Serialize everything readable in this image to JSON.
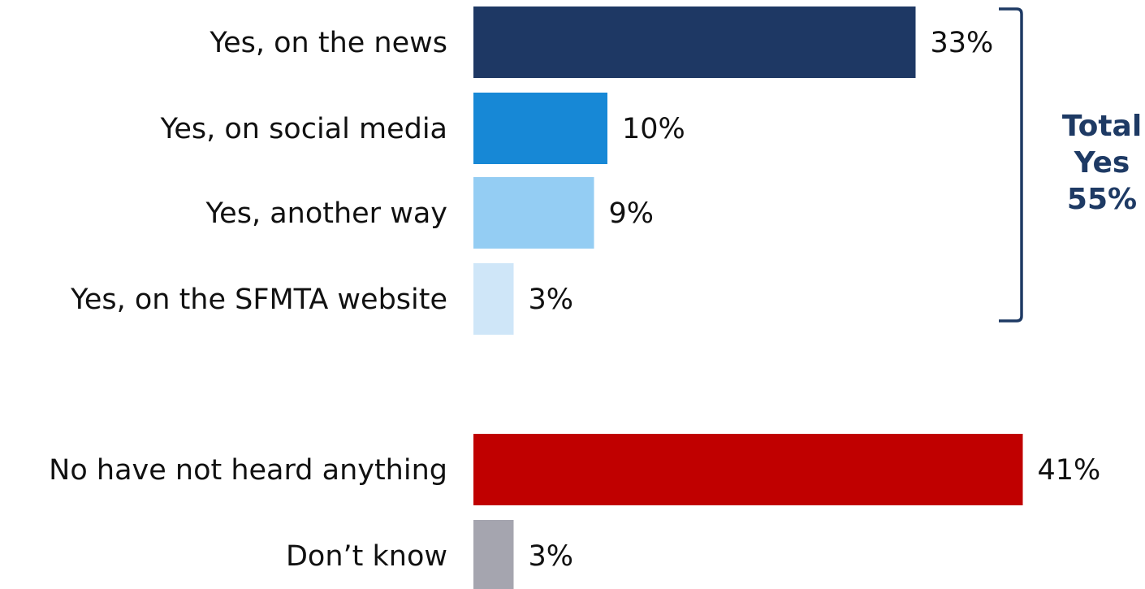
{
  "chart_data": {
    "type": "bar",
    "orientation": "horizontal",
    "categories": [
      "Yes, on the news",
      "Yes, on social media",
      "Yes, another way",
      "Yes, on the SFMTA website",
      "No have not heard anything",
      "Don’t know"
    ],
    "values": [
      33,
      10,
      9,
      3,
      41,
      3
    ],
    "value_labels": [
      "33%",
      "10%",
      "9%",
      "3%",
      "41%",
      "3%"
    ],
    "colors": [
      "#1e3864",
      "#1788d6",
      "#94cdf3",
      "#cfe6f8",
      "#c00000",
      "#a5a5af"
    ],
    "title": "",
    "xlabel": "",
    "ylabel": "",
    "xlim": [
      0,
      41
    ],
    "grid": false,
    "annotation": {
      "bracket_color": "#1e3a64",
      "lines": [
        "Total",
        "Yes",
        "55%"
      ]
    }
  }
}
